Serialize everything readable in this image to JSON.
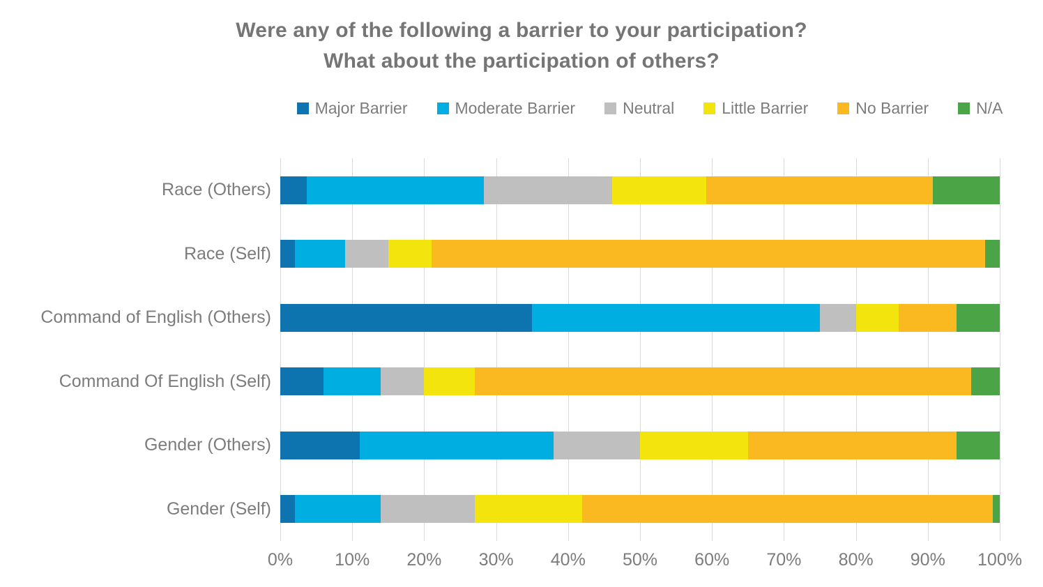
{
  "chart_data": {
    "type": "bar",
    "orientation": "horizontal-stacked",
    "title_line1": "Were any of the following a barrier to your participation?",
    "title_line2": "What about the participation of others?",
    "categories": [
      "Race (Others)",
      "Race (Self)",
      "Command of English (Others)",
      "Command Of English (Self)",
      "Gender (Others)",
      "Gender (Self)"
    ],
    "series": [
      {
        "name": "Major Barrier",
        "color": "#0d74b0",
        "values": [
          3.7,
          2,
          35,
          6,
          11,
          2
        ]
      },
      {
        "name": "Moderate Barrier",
        "color": "#00aee1",
        "values": [
          24.6,
          7,
          40,
          8,
          27,
          12
        ]
      },
      {
        "name": "Neutral",
        "color": "#bfbfbf",
        "values": [
          17.8,
          6,
          5,
          6,
          12,
          13
        ]
      },
      {
        "name": "Little Barrier",
        "color": "#f3e40e",
        "values": [
          13.1,
          6,
          6,
          7,
          15,
          15
        ]
      },
      {
        "name": "No Barrier",
        "color": "#fbb921",
        "values": [
          31.5,
          77,
          8,
          69,
          29,
          57
        ]
      },
      {
        "name": "N/A",
        "color": "#4ba546",
        "values": [
          9.3,
          2,
          6,
          4,
          6,
          1
        ]
      }
    ],
    "x_ticks": [
      "0%",
      "10%",
      "20%",
      "30%",
      "40%",
      "50%",
      "60%",
      "70%",
      "80%",
      "90%",
      "100%"
    ],
    "xlim": [
      0,
      100
    ],
    "grid": true,
    "legend_position": "top",
    "colors": {
      "title_text": "#757575",
      "label_text": "#7c7c7c",
      "gridline": "#d9d9d9",
      "background": "#ffffff"
    }
  }
}
